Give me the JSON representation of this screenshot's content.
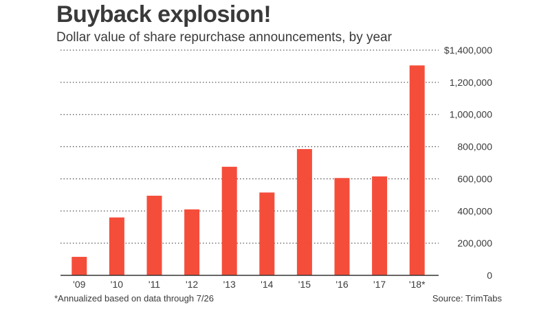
{
  "title": "Buyback explosion!",
  "subtitle": "Dollar value of share repurchase announcements, by year",
  "footnote": "*Annualized based on data through 7/26",
  "source": "Source: TrimTabs",
  "colors": {
    "bar": "#f44e3b",
    "grid": "#555555",
    "axis": "#333333"
  },
  "chart_data": {
    "type": "bar",
    "categories": [
      "'09",
      "'10",
      "'11",
      "'12",
      "'13",
      "'14",
      "'15",
      "'16",
      "'17",
      "'18*"
    ],
    "values": [
      115000,
      360000,
      495000,
      410000,
      675000,
      515000,
      785000,
      605000,
      615000,
      1305000
    ],
    "y_ticks": [
      "0",
      "200,000",
      "400,000",
      "600,000",
      "800,000",
      "1,000,000",
      "1,200,000",
      "$1,400,000"
    ],
    "ylim": [
      0,
      1400000
    ],
    "grid": true,
    "legend": "none"
  }
}
